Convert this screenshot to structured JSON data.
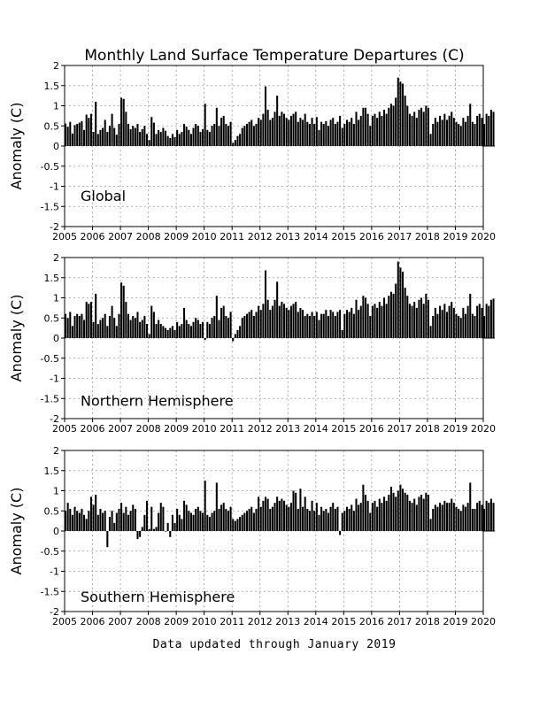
{
  "title": "Monthly Land Surface Temperature Departures (C)",
  "footer": "Data updated through January 2019",
  "chart_data": [
    {
      "type": "bar",
      "name": "Global",
      "ylabel": "Anomaly (C)",
      "xlabel": "",
      "x_start": "2005-01",
      "xlim": [
        2005,
        2020
      ],
      "ylim": [
        -2,
        2
      ],
      "yticks": [
        -2,
        -1.5,
        -1,
        -0.5,
        0,
        0.5,
        1,
        1.5,
        2
      ],
      "xticks": [
        2005,
        2006,
        2007,
        2008,
        2009,
        2010,
        2011,
        2012,
        2013,
        2014,
        2015,
        2016,
        2017,
        2018,
        2019,
        2020
      ],
      "grid": true,
      "values": [
        0.56,
        0.48,
        0.6,
        0.31,
        0.52,
        0.55,
        0.58,
        0.62,
        0.4,
        0.78,
        0.7,
        0.8,
        0.35,
        1.1,
        0.3,
        0.4,
        0.45,
        0.65,
        0.35,
        0.5,
        0.8,
        0.45,
        0.28,
        0.55,
        1.2,
        1.17,
        0.85,
        0.55,
        0.42,
        0.5,
        0.45,
        0.55,
        0.35,
        0.42,
        0.5,
        0.3,
        0.15,
        0.72,
        0.58,
        0.3,
        0.4,
        0.35,
        0.45,
        0.38,
        0.25,
        0.2,
        0.3,
        0.22,
        0.4,
        0.3,
        0.35,
        0.55,
        0.48,
        0.4,
        0.3,
        0.45,
        0.55,
        0.5,
        0.35,
        0.42,
        1.05,
        0.4,
        0.35,
        0.5,
        0.55,
        0.95,
        0.5,
        0.7,
        0.75,
        0.55,
        0.5,
        0.6,
        0.08,
        0.15,
        0.25,
        0.3,
        0.45,
        0.5,
        0.55,
        0.6,
        0.65,
        0.5,
        0.55,
        0.7,
        0.65,
        0.8,
        1.48,
        0.9,
        0.65,
        0.7,
        0.85,
        1.25,
        0.75,
        0.85,
        0.8,
        0.7,
        0.65,
        0.75,
        0.8,
        0.85,
        0.6,
        0.7,
        0.65,
        0.8,
        0.6,
        0.55,
        0.7,
        0.55,
        0.72,
        0.4,
        0.6,
        0.55,
        0.62,
        0.5,
        0.65,
        0.7,
        0.55,
        0.6,
        0.75,
        0.45,
        0.55,
        0.65,
        0.6,
        0.7,
        0.55,
        0.85,
        0.65,
        0.75,
        0.95,
        0.95,
        0.8,
        0.5,
        0.75,
        0.8,
        0.7,
        0.85,
        0.75,
        0.9,
        0.8,
        0.95,
        1.05,
        1.0,
        1.2,
        1.7,
        1.6,
        1.55,
        1.25,
        1.0,
        0.8,
        0.75,
        0.85,
        0.7,
        0.9,
        0.95,
        0.85,
        1.0,
        0.95,
        0.3,
        0.55,
        0.7,
        0.6,
        0.75,
        0.65,
        0.8,
        0.65,
        0.75,
        0.85,
        0.7,
        0.6,
        0.55,
        0.5,
        0.7,
        0.6,
        0.75,
        1.05,
        0.6,
        0.55,
        0.75,
        0.8,
        0.7,
        0.55,
        0.8,
        0.75,
        0.9,
        0.85
      ]
    },
    {
      "type": "bar",
      "name": "Northern Hemisphere",
      "ylabel": "Anomaly (C)",
      "xlabel": "",
      "x_start": "2005-01",
      "xlim": [
        2005,
        2020
      ],
      "ylim": [
        -2,
        2
      ],
      "yticks": [
        -2,
        -1.5,
        -1,
        -0.5,
        0,
        0.5,
        1,
        1.5,
        2
      ],
      "xticks": [
        2005,
        2006,
        2007,
        2008,
        2009,
        2010,
        2011,
        2012,
        2013,
        2014,
        2015,
        2016,
        2017,
        2018,
        2019,
        2020
      ],
      "grid": true,
      "values": [
        0.6,
        0.5,
        0.65,
        0.3,
        0.55,
        0.6,
        0.55,
        0.6,
        0.45,
        0.9,
        0.85,
        0.9,
        0.4,
        1.1,
        0.35,
        0.45,
        0.5,
        0.6,
        0.3,
        0.55,
        0.8,
        0.5,
        0.3,
        0.6,
        1.38,
        1.3,
        0.9,
        0.6,
        0.45,
        0.55,
        0.5,
        0.65,
        0.4,
        0.45,
        0.55,
        0.35,
        0.1,
        0.8,
        0.65,
        0.35,
        0.45,
        0.35,
        0.3,
        0.25,
        0.2,
        0.25,
        0.3,
        0.2,
        0.4,
        0.3,
        0.35,
        0.75,
        0.45,
        0.35,
        0.3,
        0.4,
        0.5,
        0.45,
        0.35,
        0.4,
        -0.05,
        0.4,
        0.35,
        0.5,
        0.55,
        1.05,
        0.45,
        0.75,
        0.8,
        0.55,
        0.5,
        0.65,
        -0.08,
        0.1,
        0.2,
        0.3,
        0.5,
        0.55,
        0.6,
        0.65,
        0.7,
        0.55,
        0.65,
        0.8,
        0.7,
        0.85,
        1.68,
        0.95,
        0.7,
        0.8,
        0.95,
        1.4,
        0.8,
        0.9,
        0.85,
        0.75,
        0.7,
        0.8,
        0.85,
        0.9,
        0.65,
        0.75,
        0.7,
        0.55,
        0.6,
        0.55,
        0.65,
        0.55,
        0.65,
        0.45,
        0.6,
        0.6,
        0.7,
        0.55,
        0.7,
        0.65,
        0.55,
        0.65,
        0.7,
        0.2,
        0.6,
        0.7,
        0.65,
        0.75,
        0.6,
        0.95,
        0.7,
        0.8,
        1.05,
        1.0,
        0.85,
        0.55,
        0.8,
        0.85,
        0.75,
        0.9,
        0.8,
        1.0,
        0.85,
        1.05,
        1.15,
        1.1,
        1.35,
        1.9,
        1.75,
        1.65,
        1.25,
        1.05,
        0.85,
        0.8,
        0.9,
        0.75,
        0.95,
        1.0,
        0.85,
        1.1,
        0.95,
        0.3,
        0.55,
        0.75,
        0.6,
        0.8,
        0.7,
        0.85,
        0.65,
        0.8,
        0.9,
        0.75,
        0.6,
        0.55,
        0.5,
        0.75,
        0.6,
        0.8,
        1.1,
        0.6,
        0.55,
        0.8,
        0.85,
        0.75,
        0.55,
        0.85,
        0.8,
        0.95,
        0.98
      ]
    },
    {
      "type": "bar",
      "name": "Southern Hemisphere",
      "ylabel": "Anomaly (C)",
      "xlabel": "",
      "x_start": "2005-01",
      "xlim": [
        2005,
        2020
      ],
      "ylim": [
        -2,
        2
      ],
      "yticks": [
        -2,
        -1.5,
        -1,
        -0.5,
        0,
        0.5,
        1,
        1.5,
        2
      ],
      "xticks": [
        2005,
        2006,
        2007,
        2008,
        2009,
        2010,
        2011,
        2012,
        2013,
        2014,
        2015,
        2016,
        2017,
        2018,
        2019,
        2020
      ],
      "grid": true,
      "values": [
        0.5,
        0.7,
        0.55,
        0.4,
        0.6,
        0.5,
        0.45,
        0.55,
        0.4,
        0.3,
        0.5,
        0.85,
        0.65,
        0.9,
        0.4,
        0.55,
        0.45,
        0.5,
        -0.4,
        0.35,
        0.5,
        0.2,
        0.45,
        0.55,
        0.7,
        0.45,
        0.6,
        0.4,
        0.5,
        0.65,
        0.55,
        -0.2,
        -0.15,
        0.1,
        0.4,
        0.75,
        0.05,
        0.6,
        0.05,
        0.1,
        0.45,
        0.7,
        0.6,
        0.0,
        0.2,
        -0.15,
        0.4,
        0.2,
        0.55,
        0.4,
        0.3,
        0.75,
        0.65,
        0.5,
        0.45,
        0.4,
        0.55,
        0.6,
        0.5,
        0.45,
        1.25,
        0.4,
        0.35,
        0.45,
        0.5,
        1.2,
        0.55,
        0.65,
        0.7,
        0.55,
        0.5,
        0.6,
        0.3,
        0.25,
        0.3,
        0.35,
        0.4,
        0.45,
        0.5,
        0.55,
        0.6,
        0.45,
        0.55,
        0.85,
        0.6,
        0.75,
        0.85,
        0.8,
        0.55,
        0.6,
        0.7,
        0.85,
        0.75,
        0.8,
        0.75,
        0.65,
        0.6,
        0.7,
        1.0,
        0.95,
        0.55,
        1.05,
        0.6,
        0.85,
        0.55,
        0.5,
        0.75,
        0.5,
        0.7,
        0.4,
        0.6,
        0.5,
        0.55,
        0.45,
        0.6,
        0.7,
        0.55,
        0.6,
        -0.1,
        0.45,
        0.5,
        0.6,
        0.55,
        0.65,
        0.5,
        0.8,
        0.65,
        0.7,
        1.15,
        0.9,
        0.75,
        0.45,
        0.7,
        0.75,
        0.6,
        0.8,
        0.7,
        0.85,
        0.75,
        0.9,
        1.1,
        0.95,
        0.85,
        1.0,
        1.15,
        1.05,
        0.95,
        0.9,
        0.75,
        0.7,
        0.8,
        0.65,
        0.85,
        0.9,
        0.8,
        0.95,
        0.9,
        0.3,
        0.55,
        0.65,
        0.6,
        0.7,
        0.65,
        0.75,
        0.7,
        0.7,
        0.8,
        0.7,
        0.6,
        0.55,
        0.5,
        0.65,
        0.6,
        0.7,
        1.2,
        0.55,
        0.55,
        0.7,
        0.75,
        0.65,
        0.55,
        0.75,
        0.7,
        0.8,
        0.7
      ]
    }
  ]
}
